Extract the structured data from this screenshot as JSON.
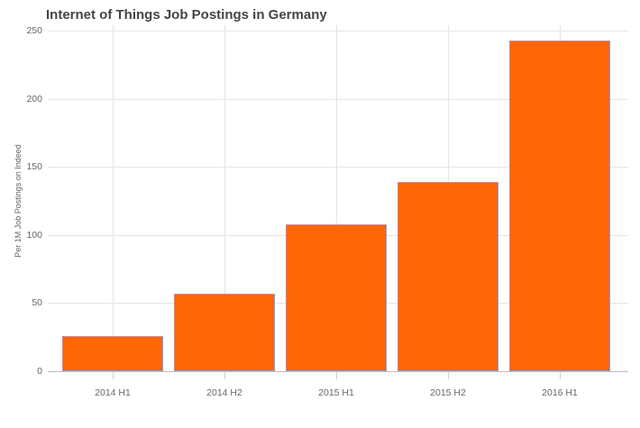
{
  "chart_data": {
    "type": "bar",
    "title": "Internet of Things Job Postings in Germany",
    "ylabel": "Per 1M Job Postings on Indeed",
    "xlabel": "",
    "categories": [
      "2014 H1",
      "2014 H2",
      "2015 H1",
      "2015 H2",
      "2016 H1"
    ],
    "values": [
      26,
      57,
      108,
      139,
      243
    ],
    "ylim": [
      0,
      250
    ],
    "yticks": [
      0,
      50,
      100,
      150,
      200,
      250
    ],
    "grid": "on",
    "legend": "none",
    "colors": {
      "bar_fill": "#FF6605",
      "bar_border": "#A493C6",
      "gridline": "#E4E4E9",
      "axis_line": "#BFBFC4",
      "tick_mark": "#CFCFD4",
      "tick_label": "#666666",
      "title": "#454545",
      "background": "#FFFFFF"
    }
  }
}
